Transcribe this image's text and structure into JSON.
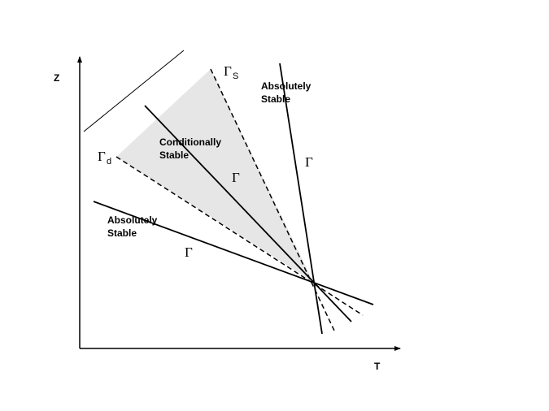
{
  "axes": {
    "x_label": "T",
    "y_label": "Z"
  },
  "regions": {
    "conditionally_stable": [
      "Conditionally",
      "Stable"
    ],
    "absolutely_stable_upper": [
      "Absolutely",
      "Stable"
    ],
    "absolutely_stable_lower": [
      "Absolutely",
      "Stable"
    ]
  },
  "lapse_rates": {
    "gamma_symbol": "Γ",
    "gamma_s_subscript": "S",
    "gamma_d_subscript": "d"
  },
  "colors": {
    "line": "#000000",
    "conditional_fill": "#e6e6e6"
  }
}
